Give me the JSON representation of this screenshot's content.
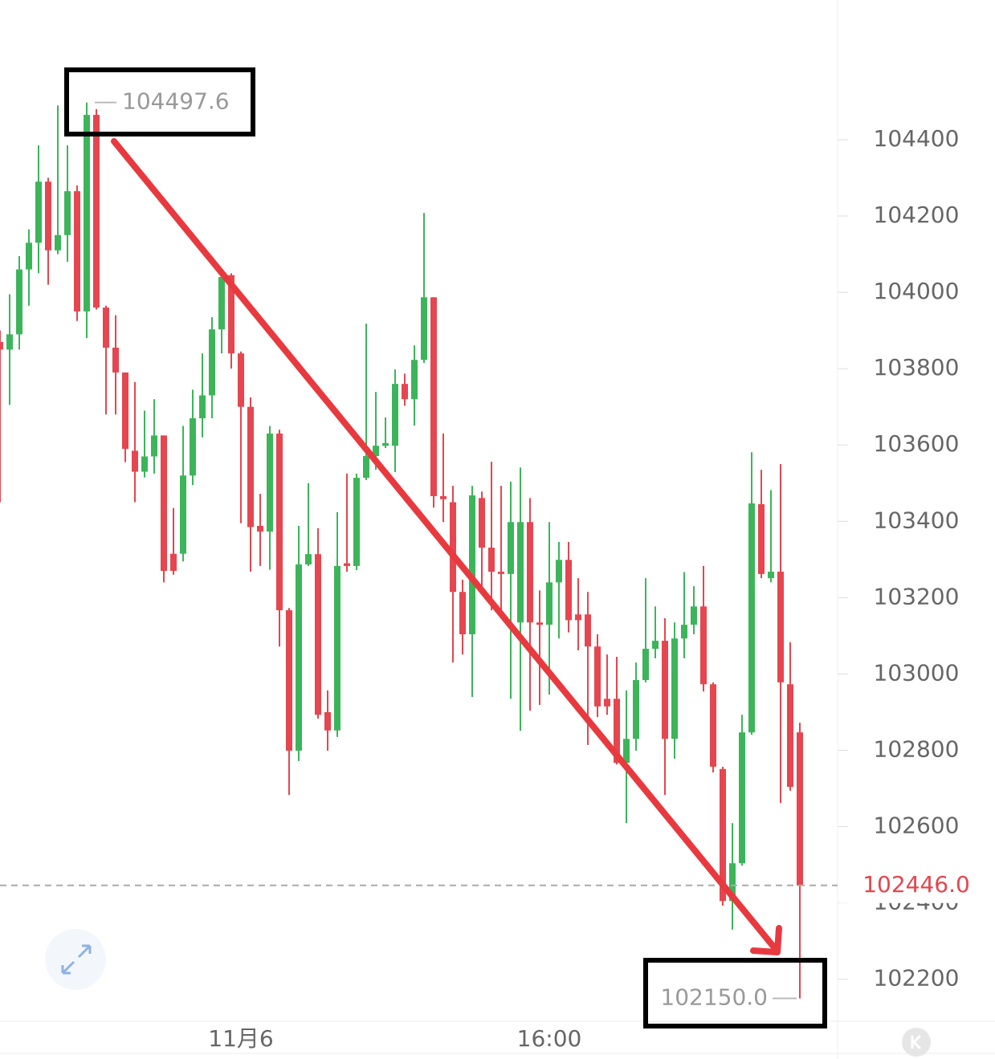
{
  "chart_data": {
    "type": "candlestick",
    "categories": [
      null,
      null,
      null,
      null,
      null,
      null,
      null,
      null,
      null,
      null,
      null,
      null,
      null,
      null,
      null,
      null,
      null,
      null,
      null,
      null,
      null,
      null,
      null,
      null,
      null,
      "11月6",
      null,
      null,
      null,
      null,
      null,
      null,
      null,
      null,
      null,
      null,
      null,
      null,
      null,
      null,
      null,
      null,
      null,
      null,
      null,
      null,
      null,
      null,
      null,
      null,
      null,
      null,
      null,
      null,
      null,
      null,
      null,
      "16:00",
      null,
      null,
      null,
      null,
      null,
      null,
      null,
      null,
      null,
      null,
      null,
      null,
      null,
      null,
      null,
      null,
      null,
      null,
      null,
      null,
      null,
      null,
      null,
      null,
      null,
      null
    ],
    "open": [
      103870,
      103850,
      103890,
      104060,
      104130,
      104290,
      104110,
      104150,
      104265,
      103950,
      104465,
      103960,
      103855,
      103790,
      103585,
      103530,
      103570,
      103625,
      103315,
      103315,
      103520,
      103670,
      103730,
      103903,
      104045,
      103840,
      103700,
      103388,
      103373,
      103630,
      103167,
      102799,
      103287,
      103314,
      102900,
      102852,
      103290,
      103283,
      103514,
      103571,
      103598,
      103598,
      103760,
      103720,
      103823,
      103987,
      103466,
      103450,
      103215,
      103104,
      103461,
      103331,
      103268,
      103262,
      103135,
      103398,
      103135,
      103129,
      103240,
      103299,
      103156,
      103156,
      103072,
      102935,
      102935,
      102767,
      102830,
      102984,
      103066,
      103087,
      102830,
      103093,
      103129,
      103177,
      102973,
      102751,
      102405,
      102504,
      102847,
      103445,
      103251,
      103268,
      102973,
      102847
    ],
    "high": [
      103900,
      103995,
      104095,
      104165,
      104385,
      104300,
      104490,
      104385,
      104280,
      104497.6,
      104480,
      103965,
      103940,
      103790,
      103765,
      103690,
      103720,
      103625,
      103435,
      103650,
      103745,
      103840,
      103935,
      104055,
      104050,
      103845,
      103725,
      103472,
      103650,
      103640,
      103173,
      103388,
      103500,
      103382,
      102957,
      103424,
      103525,
      103525,
      103918,
      103739,
      103672,
      103798,
      103787,
      103861,
      104208,
      103987,
      103630,
      103493,
      103247,
      103493,
      103478,
      103556,
      103493,
      103504,
      103541,
      103461,
      103219,
      103398,
      103346,
      103346,
      103251,
      103215,
      103104,
      103051,
      103045,
      102957,
      103030,
      103251,
      103177,
      103146,
      103135,
      103267,
      103230,
      103283,
      102978,
      102757,
      102609,
      102893,
      103581,
      103535,
      103482,
      103550,
      103083,
      102872
    ],
    "low": [
      103450,
      103705,
      103850,
      103965,
      104050,
      104020,
      104100,
      104080,
      103925,
      103880,
      103955,
      103680,
      103680,
      103555,
      103450,
      103515,
      103525,
      103240,
      103260,
      103295,
      103495,
      103620,
      103670,
      103840,
      103800,
      103395,
      103268,
      103283,
      103273,
      103072,
      102683,
      102772,
      103283,
      102883,
      102799,
      102835,
      103268,
      103272,
      103508,
      103535,
      103592,
      103529,
      103703,
      103651,
      103815,
      103436,
      103398,
      103030,
      103051,
      102940,
      103209,
      103167,
      103167,
      102935,
      102851,
      102904,
      102919,
      102946,
      103093,
      103109,
      103062,
      102814,
      102887,
      102893,
      102763,
      102609,
      102799,
      102978,
      103041,
      102683,
      102778,
      103041,
      103104,
      102954,
      102742,
      102393,
      102330,
      102498,
      102841,
      103251,
      103240,
      102662,
      102694,
      102150
    ],
    "close": [
      103850,
      103890,
      104060,
      104130,
      104290,
      104110,
      104150,
      104265,
      103950,
      104465,
      103960,
      103855,
      103790,
      103590,
      103530,
      103570,
      103625,
      103270,
      103270,
      103520,
      103670,
      103730,
      103903,
      104040,
      103840,
      103700,
      103385,
      103373,
      103630,
      103167,
      102799,
      103287,
      103314,
      102893,
      102852,
      103283,
      103283,
      103514,
      103571,
      103598,
      103605,
      103760,
      103720,
      103823,
      103987,
      103466,
      103458,
      103215,
      103104,
      103468,
      103331,
      103268,
      103262,
      103398,
      103398,
      103135,
      103129,
      103240,
      103299,
      103141,
      103141,
      103072,
      102915,
      102915,
      102767,
      102830,
      102984,
      103066,
      103087,
      102830,
      103093,
      103129,
      103177,
      102973,
      102757,
      102405,
      102504,
      102847,
      103447,
      103262,
      103268,
      102978,
      102704,
      102446
    ],
    "up_color": "#3cb55a",
    "down_color": "#e5464f",
    "ylim": [
      102090,
      104766
    ],
    "yticks": [
      102200,
      102400,
      102600,
      102800,
      103000,
      103200,
      103400,
      103600,
      103800,
      104000,
      104200,
      104400
    ],
    "last_price": {
      "value": 102446,
      "label": "102446.0"
    },
    "max_label": 104497.6,
    "min_label": {
      "value": 102150,
      "label": "102150.0"
    }
  }
}
